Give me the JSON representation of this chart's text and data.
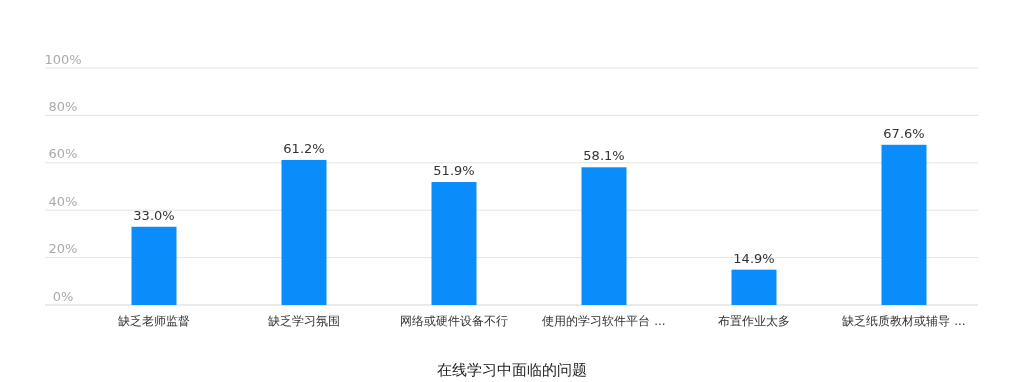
{
  "chart_data": {
    "type": "bar",
    "xlabel": "在线学习中面临的问题",
    "categories": [
      "缺乏老师监督",
      "缺乏学习氛围",
      "网络或硬件设备不行",
      "使用的学习软件平台 ...",
      "布置作业太多",
      "缺乏纸质教材或辅导 ..."
    ],
    "values": [
      33.0,
      61.2,
      51.9,
      58.1,
      14.9,
      67.6
    ],
    "color": "#0a8cfa",
    "ylim": [
      0,
      100
    ],
    "yticks": [
      {
        "value": 0,
        "label": "0%"
      },
      {
        "value": 20,
        "label": "20%"
      },
      {
        "value": 40,
        "label": "40%"
      },
      {
        "value": 60,
        "label": "60%"
      },
      {
        "value": 80,
        "label": "80%"
      },
      {
        "value": 100,
        "label": "100%"
      }
    ],
    "grid": "y",
    "value_labels": [
      "33.0%",
      "61.2%",
      "51.9%",
      "58.1%",
      "14.9%",
      "67.6%"
    ]
  }
}
